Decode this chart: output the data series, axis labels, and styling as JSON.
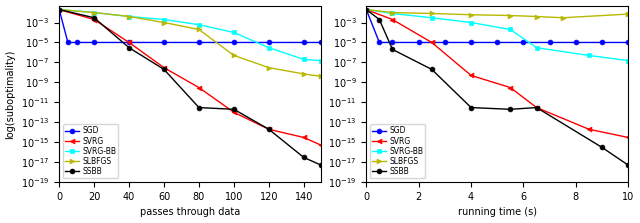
{
  "left": {
    "xlabel": "passes through data",
    "ylabel": "log(suboptimality)",
    "xlim": [
      0,
      150
    ],
    "ylim": [
      1e-19,
      0.05
    ],
    "xticks": [
      0,
      20,
      40,
      60,
      80,
      100,
      120,
      140
    ],
    "series": {
      "SGD": {
        "color": "blue",
        "marker": "o",
        "markersize": 3.5,
        "x": [
          0,
          5,
          10,
          20,
          40,
          60,
          80,
          100,
          120,
          140,
          150
        ],
        "y": [
          0.02,
          1e-05,
          1e-05,
          1e-05,
          1e-05,
          1e-05,
          1e-05,
          1e-05,
          1e-05,
          1e-05,
          1e-05
        ]
      },
      "SVRG": {
        "color": "red",
        "marker": "<",
        "markersize": 3.5,
        "x": [
          0,
          20,
          40,
          60,
          80,
          100,
          120,
          140,
          150
        ],
        "y": [
          0.02,
          0.002,
          1e-05,
          3e-08,
          3e-10,
          1e-12,
          2e-14,
          3e-15,
          5e-16
        ]
      },
      "SVRG-BB": {
        "color": "cyan",
        "marker": "s",
        "markersize": 3.5,
        "x": [
          0,
          20,
          40,
          60,
          80,
          100,
          120,
          140,
          150
        ],
        "y": [
          0.02,
          0.01,
          0.004,
          0.002,
          0.0006,
          0.0001,
          3e-06,
          2e-07,
          1.5e-07
        ]
      },
      "SLBFGS": {
        "color": "#b8b800",
        "marker": ">",
        "markersize": 3.5,
        "x": [
          0,
          20,
          40,
          60,
          80,
          100,
          120,
          140,
          150
        ],
        "y": [
          0.02,
          0.01,
          0.004,
          0.001,
          0.0002,
          5e-07,
          3e-08,
          7e-09,
          4e-09
        ]
      },
      "SSBB": {
        "color": "black",
        "marker": "o",
        "markersize": 3.5,
        "x": [
          0,
          20,
          40,
          60,
          80,
          100,
          120,
          140,
          150
        ],
        "y": [
          0.02,
          0.003,
          3e-06,
          2e-08,
          3e-12,
          2e-12,
          2e-14,
          3e-17,
          5e-18
        ]
      }
    }
  },
  "right": {
    "xlabel": "running time (s)",
    "ylabel": "log(suboptimality)",
    "xlim": [
      0,
      10
    ],
    "ylim": [
      1e-19,
      0.05
    ],
    "xticks": [
      0,
      2,
      4,
      6,
      8,
      10
    ],
    "series": {
      "SGD": {
        "color": "blue",
        "marker": "o",
        "markersize": 3.5,
        "x": [
          0,
          0.5,
          1.0,
          2.0,
          3.0,
          4.0,
          5.0,
          6.0,
          7.0,
          8.0,
          9.0,
          10.0
        ],
        "y": [
          0.02,
          1e-05,
          1e-05,
          1e-05,
          1e-05,
          1e-05,
          1e-05,
          1e-05,
          1e-05,
          1e-05,
          1e-05,
          1e-05
        ]
      },
      "SVRG": {
        "color": "red",
        "marker": "<",
        "markersize": 3.5,
        "x": [
          0,
          1.0,
          2.5,
          4.0,
          5.5,
          6.5,
          8.5,
          10.0
        ],
        "y": [
          0.02,
          0.002,
          1e-05,
          5e-09,
          3e-10,
          3e-12,
          2e-14,
          3e-15
        ]
      },
      "SVRG-BB": {
        "color": "cyan",
        "marker": "s",
        "markersize": 3.5,
        "x": [
          0,
          1.0,
          2.5,
          4.0,
          5.5,
          6.5,
          8.5,
          10.0
        ],
        "y": [
          0.02,
          0.008,
          0.003,
          0.001,
          0.0002,
          3e-06,
          5e-07,
          1.5e-07
        ]
      },
      "SLBFGS": {
        "color": "#b8b800",
        "marker": ">",
        "markersize": 3.5,
        "x": [
          0,
          1.0,
          2.5,
          4.0,
          5.5,
          6.5,
          7.5,
          10.0
        ],
        "y": [
          0.02,
          0.01,
          0.008,
          0.006,
          0.005,
          0.004,
          0.003,
          0.007
        ]
      },
      "SSBB": {
        "color": "black",
        "marker": "o",
        "markersize": 3.5,
        "x": [
          0,
          0.5,
          1.0,
          2.5,
          4.0,
          5.5,
          6.5,
          9.0,
          10.0
        ],
        "y": [
          0.02,
          0.002,
          2e-06,
          2e-08,
          3e-12,
          2e-12,
          3e-12,
          3e-16,
          5e-18
        ]
      }
    }
  },
  "legend_order": [
    "SGD",
    "SVRG",
    "SVRG-BB",
    "SLBFGS",
    "SSBB"
  ],
  "linewidth": 1.0
}
